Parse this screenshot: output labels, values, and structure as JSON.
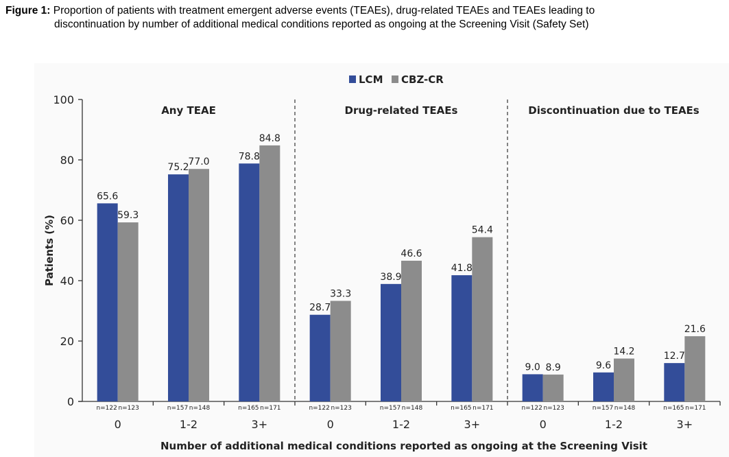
{
  "caption": {
    "figure_label": "Figure 1:",
    "line1": " Proportion of patients with treatment emergent adverse events (TEAEs), drug-related TEAEs and TEAEs leading to",
    "line2": "discontinuation by number of additional medical conditions reported as ongoing at the Screening Visit (Safety Set)"
  },
  "chart_data": {
    "type": "bar",
    "title": "",
    "xlabel": "Number of additional medical conditions reported as ongoing at the Screening Visit",
    "ylabel": "Patients (%)",
    "ylim": [
      0,
      100
    ],
    "yticks": [
      0,
      20,
      40,
      60,
      80,
      100
    ],
    "grid": false,
    "legend": {
      "placement": "top-center",
      "entries": [
        {
          "name": "LCM",
          "color": "#334d99"
        },
        {
          "name": "CBZ-CR",
          "color": "#8c8c8c"
        }
      ]
    },
    "categories": [
      "0",
      "1-2",
      "3+"
    ],
    "panels": [
      {
        "title": "Any TEAE",
        "series": [
          {
            "name": "LCM",
            "values": [
              65.6,
              75.2,
              78.8
            ],
            "labels": [
              "65.6",
              "75.2",
              "78.8"
            ],
            "n": [
              "n=122",
              "n=157",
              "n=165"
            ]
          },
          {
            "name": "CBZ-CR",
            "values": [
              59.3,
              77.0,
              84.8
            ],
            "labels": [
              "59.3",
              "77.0",
              "84.8"
            ],
            "n": [
              "n=123",
              "n=148",
              "n=171"
            ]
          }
        ]
      },
      {
        "title": "Drug-related TEAEs",
        "series": [
          {
            "name": "LCM",
            "values": [
              28.7,
              38.9,
              41.8
            ],
            "labels": [
              "28.7",
              "38.9",
              "41.8"
            ],
            "n": [
              "n=122",
              "n=157",
              "n=165"
            ]
          },
          {
            "name": "CBZ-CR",
            "values": [
              33.3,
              46.6,
              54.4
            ],
            "labels": [
              "33.3",
              "46.6",
              "54.4"
            ],
            "n": [
              "n=123",
              "n=148",
              "n=171"
            ]
          }
        ]
      },
      {
        "title": "Discontinuation due to TEAEs",
        "series": [
          {
            "name": "LCM",
            "values": [
              9.0,
              9.6,
              12.7
            ],
            "labels": [
              "9.0",
              "9.6",
              "12.7"
            ],
            "n": [
              "n=122",
              "n=157",
              "n=165"
            ]
          },
          {
            "name": "CBZ-CR",
            "values": [
              8.9,
              14.2,
              21.6
            ],
            "labels": [
              "8.9",
              "14.2",
              "21.6"
            ],
            "n": [
              "n=123",
              "n=148",
              "n=171"
            ]
          }
        ]
      }
    ]
  }
}
